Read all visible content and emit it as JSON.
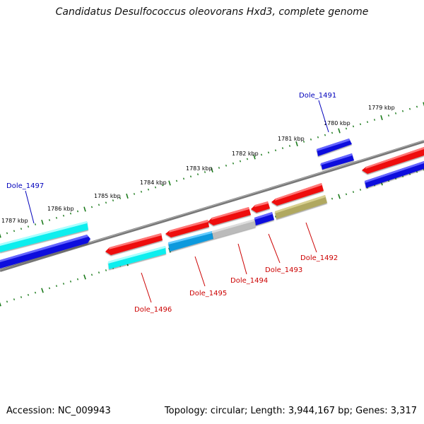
{
  "title": "Candidatus Desulfococcus oleovorans Hxd3, complete genome",
  "accession": "Accession: NC_009943",
  "stats": "Topology: circular; Length: 3,944,167 bp; Genes: 3,317",
  "colors": {
    "backbone": "#808080",
    "tick": "#1a7a1a",
    "forward_label": "#0000bb",
    "reverse_label": "#cc0000",
    "red_gene": "#ee1111",
    "blue_gene": "#1111dd",
    "cyan_gene": "#11eeee",
    "light_blue_gene": "#1199dd",
    "gray_gene": "#bbbbbb",
    "olive_gene": "#b0a860"
  },
  "kbp_labels": [
    "1779 kbp",
    "1780 kbp",
    "1781 kbp",
    "1782 kbp",
    "1783 kbp",
    "1784 kbp",
    "1785 kbp",
    "1786 kbp",
    "1787 kbp"
  ],
  "gene_labels": {
    "dole_1491": "Dole_1491",
    "dole_1492": "Dole_1492",
    "dole_1493": "Dole_1493",
    "dole_1494": "Dole_1494",
    "dole_1495": "Dole_1495",
    "dole_1496": "Dole_1496",
    "dole_1497": "Dole_1497"
  }
}
